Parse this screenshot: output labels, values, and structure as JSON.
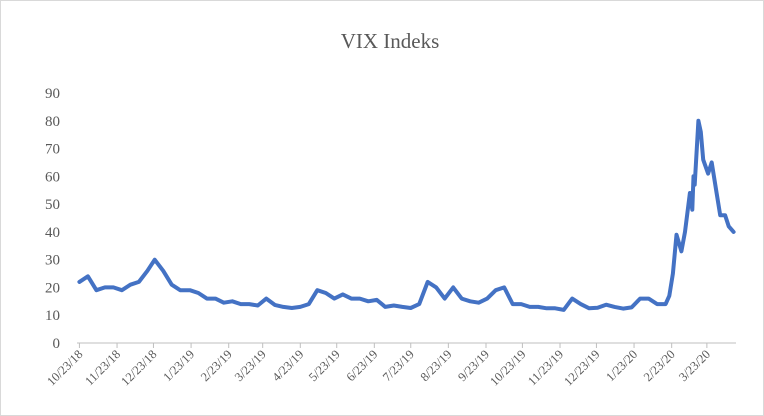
{
  "chart_data": {
    "type": "line",
    "title": "VIX Indeks",
    "x": [
      "10/23/18",
      "10/30/18",
      "11/6/18",
      "11/13/18",
      "11/20/18",
      "11/27/18",
      "12/4/18",
      "12/11/18",
      "12/18/18",
      "12/24/18",
      "12/31/18",
      "1/7/19",
      "1/14/19",
      "1/22/19",
      "1/29/19",
      "2/5/19",
      "2/12/19",
      "2/19/19",
      "2/26/19",
      "3/5/19",
      "3/12/19",
      "3/19/19",
      "3/26/19",
      "4/2/19",
      "4/9/19",
      "4/16/19",
      "4/23/19",
      "4/30/19",
      "5/7/19",
      "5/14/19",
      "5/21/19",
      "5/28/19",
      "6/4/19",
      "6/11/19",
      "6/18/19",
      "6/25/19",
      "7/2/19",
      "7/9/19",
      "7/16/19",
      "7/23/19",
      "7/30/19",
      "8/6/19",
      "8/13/19",
      "8/20/19",
      "8/27/19",
      "9/3/19",
      "9/10/19",
      "9/17/19",
      "9/24/19",
      "10/1/19",
      "10/8/19",
      "10/15/19",
      "10/22/19",
      "10/29/19",
      "11/5/19",
      "11/12/19",
      "11/19/19",
      "11/26/19",
      "12/3/19",
      "12/10/19",
      "12/17/19",
      "12/24/19",
      "12/31/19",
      "1/7/20",
      "1/14/20",
      "1/21/20",
      "1/28/20",
      "2/4/20",
      "2/11/20",
      "2/18/20",
      "2/21/20",
      "2/24/20",
      "2/27/20",
      "3/2/20",
      "3/5/20",
      "3/9/20",
      "3/11/20",
      "3/12/20",
      "3/13/20",
      "3/16/20",
      "3/18/20",
      "3/20/20",
      "3/24/20",
      "3/27/20",
      "3/31/20",
      "4/3/20",
      "4/7/20",
      "4/10/20",
      "4/14/20"
    ],
    "series": [
      {
        "name": "VIX",
        "color": "#4472c4",
        "values": [
          22,
          24,
          19,
          20,
          20,
          19,
          21,
          22,
          26,
          30,
          26,
          21,
          19,
          19,
          18,
          16,
          16,
          14.5,
          15,
          14,
          14,
          13.5,
          16,
          13.7,
          13,
          12.6,
          13,
          14,
          19,
          18,
          16,
          17.5,
          16,
          16,
          15,
          15.5,
          13,
          13.5,
          13,
          12.6,
          14,
          22,
          20,
          16,
          20,
          16,
          15,
          14.5,
          16,
          19,
          20,
          14,
          14,
          13,
          13,
          12.5,
          12.5,
          11.9,
          16,
          14,
          12.5,
          12.7,
          13.8,
          13,
          12.4,
          12.8,
          16,
          16,
          14,
          14,
          17,
          25,
          39,
          33,
          40,
          54,
          48,
          60,
          57,
          80,
          76,
          66,
          61,
          65,
          54,
          46,
          46,
          42,
          40
        ]
      }
    ],
    "xlim": [
      "10/21/18",
      "4/16/20"
    ],
    "xticks": [
      "10/23/18",
      "11/23/18",
      "12/23/18",
      "1/23/19",
      "2/23/19",
      "3/23/19",
      "4/23/19",
      "5/23/19",
      "6/23/19",
      "7/23/19",
      "8/23/19",
      "9/23/19",
      "10/23/19",
      "11/23/19",
      "12/23/19",
      "1/23/20",
      "2/23/20",
      "3/23/20"
    ],
    "ylim": [
      0,
      90
    ],
    "yticks": [
      0,
      10,
      20,
      30,
      40,
      50,
      60,
      70,
      80,
      90
    ]
  }
}
